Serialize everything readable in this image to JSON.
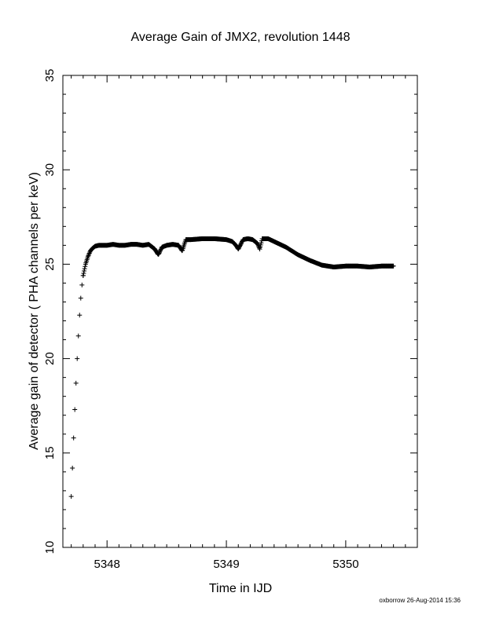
{
  "chart_data": {
    "type": "scatter",
    "title": "Average Gain of JMX2, revolution 1448",
    "xlabel": "Time in IJD",
    "ylabel": "Average gain of detector ( PHA channels per keV)",
    "xlim": [
      5347.63,
      5350.6
    ],
    "ylim": [
      10,
      35
    ],
    "xticks": [
      5348,
      5349,
      5350
    ],
    "yticks": [
      10,
      15,
      20,
      25,
      30,
      35
    ],
    "marker": "plus",
    "grid": false,
    "footer": "oxborrow 26-Aug-2014 15:36",
    "series": [
      {
        "x": [
          5347.7,
          5347.71,
          5347.72,
          5347.73,
          5347.74,
          5347.75,
          5347.76,
          5347.77,
          5347.78,
          5347.79,
          5347.8,
          5347.82,
          5347.84,
          5347.86,
          5347.88,
          5347.9,
          5347.93,
          5347.96,
          5348.0,
          5348.05,
          5348.1,
          5348.15,
          5348.2,
          5348.25,
          5348.3,
          5348.35,
          5348.4,
          5348.43,
          5348.46,
          5348.5,
          5348.55,
          5348.6,
          5348.63,
          5348.66,
          5348.7,
          5348.8,
          5348.9,
          5349.0,
          5349.05,
          5349.08,
          5349.1,
          5349.14,
          5349.18,
          5349.22,
          5349.26,
          5349.28,
          5349.3,
          5349.35,
          5349.4,
          5349.5,
          5349.6,
          5349.7,
          5349.8,
          5349.9,
          5350.0,
          5350.1,
          5350.2,
          5350.3,
          5350.4
        ],
        "y": [
          12.7,
          14.2,
          15.8,
          17.3,
          18.7,
          20.0,
          21.2,
          22.3,
          23.2,
          23.9,
          24.4,
          25.0,
          25.4,
          25.7,
          25.85,
          25.95,
          26.0,
          26.0,
          26.0,
          26.05,
          26.0,
          26.0,
          26.05,
          26.05,
          26.0,
          26.05,
          25.8,
          25.5,
          25.9,
          26.0,
          26.05,
          26.0,
          25.7,
          26.3,
          26.3,
          26.35,
          26.35,
          26.3,
          26.2,
          26.0,
          25.8,
          26.3,
          26.35,
          26.3,
          26.1,
          25.8,
          26.35,
          26.35,
          26.2,
          25.9,
          25.5,
          25.2,
          24.95,
          24.85,
          24.9,
          24.9,
          24.85,
          24.9,
          24.9
        ]
      }
    ]
  }
}
